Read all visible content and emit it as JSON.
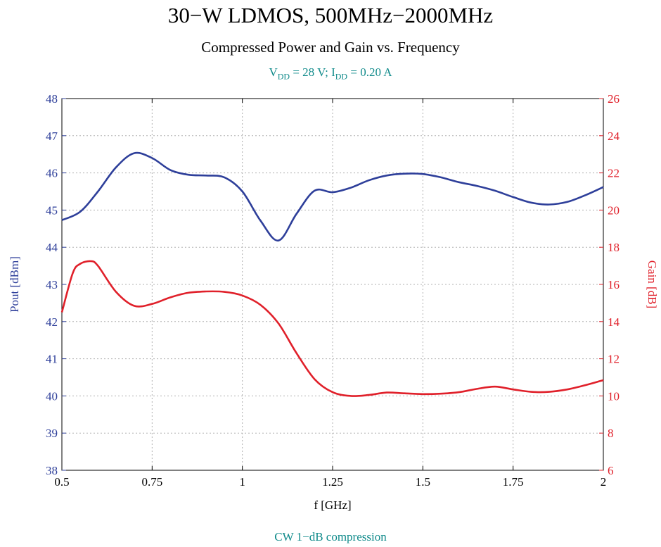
{
  "colors": {
    "pout": "#2e3f9a",
    "gain": "#e0202a",
    "caption": "#0f8a8a",
    "grid": "#b0b0b0"
  },
  "conditions": {
    "v_main": "V",
    "v_sub": "DD",
    "mid": " = 28 V; I",
    "i_sub": "DD",
    "end": " = 0.20 A"
  },
  "footnote": "CW 1−dB compression",
  "chart_data": {
    "type": "line",
    "title": "30−W LDMOS, 500MHz−2000MHz",
    "subtitle": "Compressed Power and Gain vs. Frequency",
    "xlabel": "f [GHz]",
    "ylabel": "Pout [dBm]",
    "y2label": "Gain [dB]",
    "xlim": [
      0.5,
      2
    ],
    "ylim": [
      38,
      48
    ],
    "y2lim": [
      6,
      26
    ],
    "xticks": [
      "0.5",
      "0.75",
      "1",
      "1.25",
      "1.5",
      "1.75",
      "2"
    ],
    "yticks": [
      "38",
      "39",
      "40",
      "41",
      "42",
      "43",
      "44",
      "45",
      "46",
      "47",
      "48"
    ],
    "y2ticks": [
      "6",
      "8",
      "10",
      "12",
      "14",
      "16",
      "18",
      "20",
      "22",
      "24",
      "26"
    ],
    "grid": true,
    "series": [
      {
        "axis": "left",
        "x": [
          0.5,
          0.55,
          0.6,
          0.65,
          0.7,
          0.75,
          0.8,
          0.85,
          0.9,
          0.95,
          1.0,
          1.05,
          1.1,
          1.15,
          1.2,
          1.25,
          1.3,
          1.35,
          1.4,
          1.45,
          1.5,
          1.55,
          1.6,
          1.65,
          1.7,
          1.75,
          1.8,
          1.85,
          1.9,
          1.95,
          2.0
        ],
        "values": [
          44.73,
          44.95,
          45.5,
          46.15,
          46.53,
          46.4,
          46.08,
          45.95,
          45.93,
          45.88,
          45.5,
          44.72,
          44.18,
          44.9,
          45.52,
          45.48,
          45.6,
          45.8,
          45.93,
          45.98,
          45.97,
          45.88,
          45.75,
          45.65,
          45.52,
          45.35,
          45.2,
          45.15,
          45.22,
          45.4,
          45.62
        ]
      },
      {
        "axis": "right",
        "x": [
          0.5,
          0.53,
          0.55,
          0.58,
          0.6,
          0.65,
          0.7,
          0.75,
          0.8,
          0.85,
          0.9,
          0.95,
          1.0,
          1.05,
          1.1,
          1.15,
          1.2,
          1.25,
          1.3,
          1.35,
          1.4,
          1.45,
          1.5,
          1.55,
          1.6,
          1.65,
          1.7,
          1.75,
          1.8,
          1.85,
          1.9,
          1.95,
          2.0
        ],
        "values": [
          14.5,
          16.6,
          17.1,
          17.25,
          17.0,
          15.6,
          14.85,
          14.95,
          15.3,
          15.55,
          15.62,
          15.6,
          15.4,
          14.9,
          13.9,
          12.3,
          10.9,
          10.2,
          10.0,
          10.05,
          10.18,
          10.14,
          10.1,
          10.12,
          10.2,
          10.38,
          10.5,
          10.35,
          10.22,
          10.22,
          10.35,
          10.58,
          10.85
        ]
      }
    ]
  }
}
